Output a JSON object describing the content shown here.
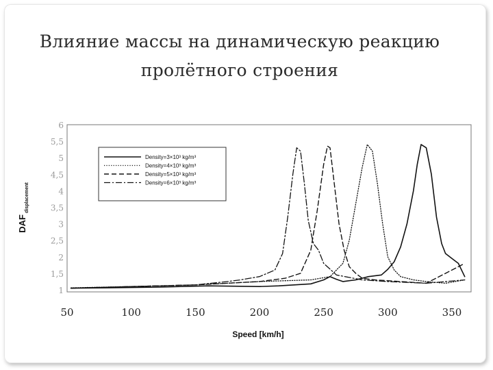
{
  "slide": {
    "title_line1": "Влияние массы на динамическую реакцию",
    "title_line2": "пролётного строения"
  },
  "chart_data": {
    "type": "line",
    "xlabel": "Speed [km/h]",
    "ylabel_main": "DAF",
    "ylabel_sub": "displacement",
    "xlim": [
      50,
      360
    ],
    "ylim": [
      1,
      6
    ],
    "xticks": [
      "50",
      "100",
      "150",
      "200",
      "250",
      "300",
      "350"
    ],
    "yticks": [
      "1",
      "1,5",
      "2",
      "2,5",
      "3",
      "3,5",
      "4",
      "4,5",
      "5",
      "5,5",
      "6"
    ],
    "grid": false,
    "legend_position": "top-left",
    "series": [
      {
        "name": "Density=3×10³ kg/m³",
        "style": "solid",
        "x": [
          53,
          80,
          120,
          160,
          200,
          215,
          240,
          250,
          255,
          260,
          265,
          275,
          285,
          295,
          300,
          305,
          310,
          315,
          320,
          323,
          326,
          330,
          334,
          338,
          342,
          345,
          350,
          355,
          360
        ],
        "y": [
          1.05,
          1.06,
          1.08,
          1.12,
          1.1,
          1.12,
          1.18,
          1.3,
          1.4,
          1.32,
          1.25,
          1.3,
          1.4,
          1.45,
          1.62,
          1.85,
          2.3,
          3.0,
          4.0,
          4.8,
          5.4,
          5.3,
          4.5,
          3.2,
          2.4,
          2.1,
          1.95,
          1.8,
          1.4
        ]
      },
      {
        "name": "Density=4×10³ kg/m³",
        "style": "dotted",
        "x": [
          53,
          100,
          150,
          200,
          240,
          255,
          265,
          270,
          275,
          280,
          284,
          288,
          292,
          296,
          300,
          305,
          310,
          320,
          330,
          345,
          360
        ],
        "y": [
          1.06,
          1.1,
          1.15,
          1.25,
          1.3,
          1.4,
          1.8,
          2.5,
          3.6,
          4.7,
          5.4,
          5.2,
          4.2,
          3.0,
          2.0,
          1.6,
          1.4,
          1.3,
          1.25,
          1.2,
          1.3
        ]
      },
      {
        "name": "Density=5×10³ kg/m³",
        "style": "dashed",
        "x": [
          53,
          100,
          150,
          200,
          220,
          232,
          240,
          245,
          250,
          253,
          255,
          258,
          262,
          266,
          270,
          275,
          280,
          290,
          310,
          330,
          350,
          360
        ],
        "y": [
          1.05,
          1.1,
          1.15,
          1.25,
          1.35,
          1.5,
          2.2,
          3.4,
          4.8,
          5.35,
          5.3,
          4.3,
          3.0,
          2.2,
          1.7,
          1.5,
          1.35,
          1.3,
          1.25,
          1.2,
          1.6,
          1.8
        ]
      },
      {
        "name": "Density=6×10³ kg/m³",
        "style": "dashdot",
        "x": [
          53,
          100,
          150,
          175,
          185,
          200,
          212,
          218,
          222,
          226,
          229,
          232,
          235,
          238,
          242,
          246,
          250,
          260,
          280,
          300,
          330,
          360
        ],
        "y": [
          1.05,
          1.1,
          1.15,
          1.25,
          1.3,
          1.4,
          1.6,
          2.1,
          3.2,
          4.5,
          5.3,
          5.2,
          4.2,
          3.1,
          2.4,
          2.2,
          1.8,
          1.45,
          1.3,
          1.25,
          1.2,
          1.3
        ]
      }
    ]
  }
}
